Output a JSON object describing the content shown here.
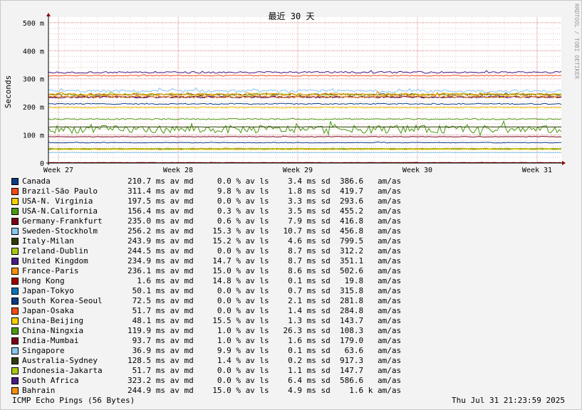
{
  "chart_data": {
    "type": "line",
    "title": "最近 30 天",
    "ylabel": "Seconds",
    "side_label": "RRDTOOL / TOBI OETIKER",
    "x_ticks": [
      "Week 27",
      "Week 28",
      "Week 29",
      "Week 30",
      "Week 31"
    ],
    "y_ticks": [
      "0",
      "100 m",
      "200 m",
      "300 m",
      "400 m",
      "500 m"
    ],
    "ylim": [
      0,
      0.52
    ],
    "grid": true,
    "legend_position": "bottom",
    "series": [
      {
        "name": "Canada",
        "color": "#0b3c84",
        "avg": 0.2107,
        "jitter": 0.002,
        "spike": 0.002,
        "stats": "210.7 ms av md     0.0 % av ls    3.4 ms sd  386.6   am/as"
      },
      {
        "name": "Brazil-São Paulo",
        "color": "#f24a16",
        "avg": 0.3114,
        "jitter": 0.002,
        "spike": 0.003,
        "stats": "311.4 ms av md     9.8 % av ls    1.8 ms sd  419.7   am/as"
      },
      {
        "name": "USA-N. Virginia",
        "color": "#f5d000",
        "avg": 0.1975,
        "jitter": 0.002,
        "spike": 0.002,
        "stats": "197.5 ms av md     0.0 % av ls    3.3 ms sd  293.6   am/as"
      },
      {
        "name": "USA-N.California",
        "color": "#4a9a12",
        "avg": 0.1564,
        "jitter": 0.002,
        "spike": 0.002,
        "stats": "156.4 ms av md     0.3 % av ls    3.5 ms sd  455.2   am/as"
      },
      {
        "name": "Germany-Frankfurt",
        "color": "#7a0018",
        "avg": 0.235,
        "jitter": 0.003,
        "spike": 0.004,
        "stats": "235.0 ms av md     0.6 % av ls    7.9 ms sd  416.8   am/as"
      },
      {
        "name": "Sweden-Stockholm",
        "color": "#86c8f2",
        "avg": 0.2562,
        "jitter": 0.005,
        "spike": 0.015,
        "stats": "256.2 ms av md    15.3 % av ls   10.7 ms sd  456.8   am/as"
      },
      {
        "name": "Italy-Milan",
        "color": "#2d3d06",
        "avg": 0.2439,
        "jitter": 0.003,
        "spike": 0.004,
        "stats": "243.9 ms av md    15.2 % av ls    4.6 ms sd  799.5   am/as"
      },
      {
        "name": "Ireland-Dublin",
        "color": "#a8c812",
        "avg": 0.2445,
        "jitter": 0.004,
        "spike": 0.012,
        "stats": "244.5 ms av md     0.0 % av ls    8.7 ms sd  312.2   am/as"
      },
      {
        "name": "United Kingdom",
        "color": "#4b1a84",
        "avg": 0.2349,
        "jitter": 0.003,
        "spike": 0.004,
        "stats": "234.9 ms av md    14.7 % av ls    8.7 ms sd  351.1   am/as"
      },
      {
        "name": "France-Paris",
        "color": "#f5900a",
        "avg": 0.2361,
        "jitter": 0.004,
        "spike": 0.018,
        "stats": "236.1 ms av md    15.0 % av ls    8.6 ms sd  502.6   am/as"
      },
      {
        "name": "Hong Kong",
        "color": "#a00000",
        "avg": 0.0016,
        "jitter": 0.0005,
        "spike": 0.001,
        "stats": "  1.6 ms av md    14.8 % av ls    0.1 ms sd   19.8   am/as"
      },
      {
        "name": "Japan-Tokyo",
        "color": "#0b72b8",
        "avg": 0.0501,
        "jitter": 0.001,
        "spike": 0.002,
        "stats": " 50.1 ms av md     0.0 % av ls    0.7 ms sd  315.8   am/as"
      },
      {
        "name": "South Korea-Seoul",
        "color": "#0b3c84",
        "avg": 0.0725,
        "jitter": 0.001,
        "spike": 0.003,
        "stats": " 72.5 ms av md     0.0 % av ls    2.1 ms sd  281.8   am/as"
      },
      {
        "name": "Japan-Osaka",
        "color": "#f24a16",
        "avg": 0.0517,
        "jitter": 0.001,
        "spike": 0.002,
        "stats": " 51.7 ms av md     0.0 % av ls    1.4 ms sd  284.8   am/as"
      },
      {
        "name": "China-Beijing",
        "color": "#f5d000",
        "avg": 0.0481,
        "jitter": 0.001,
        "spike": 0.002,
        "stats": " 48.1 ms av md    15.5 % av ls    1.3 ms sd  143.7   am/as"
      },
      {
        "name": "China-Ningxia",
        "color": "#4a9a12",
        "avg": 0.1199,
        "jitter": 0.014,
        "spike": 0.045,
        "stats": "119.9 ms av md     1.0 % av ls   26.3 ms sd  108.3   am/as"
      },
      {
        "name": "India-Mumbai",
        "color": "#7a0018",
        "avg": 0.0937,
        "jitter": 0.001,
        "spike": 0.002,
        "stats": " 93.7 ms av md     1.0 % av ls    1.6 ms sd  179.0   am/as"
      },
      {
        "name": "Singapore",
        "color": "#86c8f2",
        "avg": 0.0369,
        "jitter": 0.0005,
        "spike": 0.001,
        "stats": " 36.9 ms av md     9.9 % av ls    0.1 ms sd   63.6   am/as"
      },
      {
        "name": "Australia-Sydney",
        "color": "#2d3d06",
        "avg": 0.1285,
        "jitter": 0.0005,
        "spike": 0.001,
        "stats": "128.5 ms av md     1.4 % av ls    0.2 ms sd  917.3   am/as"
      },
      {
        "name": "Indonesia-Jakarta",
        "color": "#a8c812",
        "avg": 0.0517,
        "jitter": 0.001,
        "spike": 0.002,
        "stats": " 51.7 ms av md     0.0 % av ls    1.1 ms sd  147.7   am/as"
      },
      {
        "name": "South Africa",
        "color": "#4b1a84",
        "avg": 0.3232,
        "jitter": 0.003,
        "spike": 0.008,
        "stats": "323.2 ms av md     0.0 % av ls    6.4 ms sd  586.6   am/as"
      },
      {
        "name": "Bahrain",
        "color": "#f5900a",
        "avg": 0.2449,
        "jitter": 0.004,
        "spike": 0.01,
        "stats": "244.9 ms av md    15.0 % av ls    4.9 ms sd    1.6 k am/as"
      }
    ]
  },
  "footer": {
    "left": "ICMP Echo Pings (56 Bytes)",
    "right": "Thu Jul 31 21:23:59 2025"
  }
}
